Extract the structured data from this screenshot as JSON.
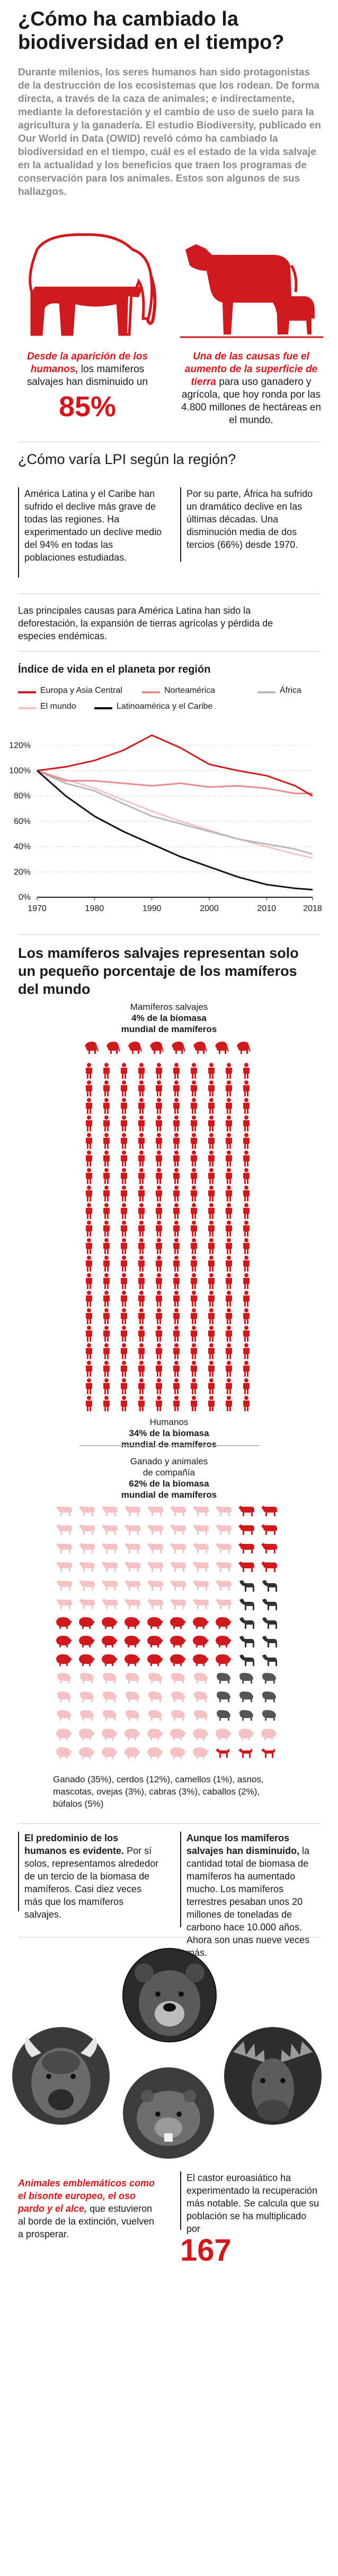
{
  "header": {
    "title": "¿Cómo ha cambiado la biodiversidad en el tiempo?",
    "intro": "Durante milenios, los seres humanos han sido protagonistas de la destrucción de los ecosistemas que los rodean. De forma directa, a través de la caza de animales; e indirectamente, mediante la deforestación y el cambio de uso de suelo para la agricultura y la ganadería. El estudio Biodiversity, publicado en Our World in Data (OWID) reveló cómo ha cambiado la biodiversidad en el tiempo, cuál es el estado de la vida salvaje en la actualidad y los beneficios que traen los programas de conservación para los animales. Estos son algunos de sus hallazgos."
  },
  "facts": {
    "left_highlight": "Desde la aparición de los humanos,",
    "left_rest": " los mamíferos salvajes han disminuido un",
    "left_value": "85%",
    "right_highlight": "Una de las causas fue el aumento de la superficie de tierra",
    "right_rest": " para uso ganadero y agrícola, que hoy ronda por las 4.800 millones de hectáreas en el mundo."
  },
  "lpi": {
    "heading": "¿Cómo varía LPI según la región?",
    "col1": "América Latina y el Caribe han sufrido el declive más grave de todas las regiones. Ha experimentado un declive medio del 94% en todas las poblaciones estudiadas.",
    "col2": "Por su parte, África ha sufrido un dramático declive en las últimas décadas. Una disminución media de dos tercios (66%) desde 1970.",
    "causes": "Las principales causas para América Latina han sido la deforestación, la expansión de tierras agrícolas y pérdida de especies endémicas."
  },
  "colors": {
    "red": "#d0191d",
    "pink": "#e98a8c",
    "lightpink": "#f4c2c3",
    "gray": "#b9b9b9",
    "black": "#111111",
    "darkgray": "#666666"
  },
  "chart_data": {
    "type": "line",
    "title": "Índice de vida en el planeta por región",
    "x": [
      1970,
      1975,
      1980,
      1985,
      1990,
      1995,
      2000,
      2005,
      2010,
      2015,
      2018
    ],
    "xticks": [
      "1970",
      "1980",
      "1990",
      "2000",
      "2010",
      "2018"
    ],
    "yticks": [
      "0%",
      "20%",
      "40%",
      "60%",
      "80%",
      "100%",
      "120%"
    ],
    "ylim": [
      0,
      130
    ],
    "legend_position": "top",
    "series": [
      {
        "name": "Europa y Asia Central",
        "color": "#d0191d",
        "values": [
          100,
          103,
          108,
          116,
          128,
          118,
          105,
          100,
          96,
          88,
          80
        ]
      },
      {
        "name": "Norteamérica",
        "color": "#e98a8c",
        "values": [
          100,
          92,
          92,
          90,
          88,
          90,
          87,
          88,
          86,
          82,
          82
        ]
      },
      {
        "name": "África",
        "color": "#b9b9b9",
        "values": [
          100,
          90,
          84,
          74,
          64,
          58,
          52,
          46,
          42,
          38,
          34
        ]
      },
      {
        "name": "El mundo",
        "color": "#f4c2c3",
        "values": [
          100,
          93,
          86,
          77,
          68,
          60,
          53,
          46,
          40,
          34,
          31
        ]
      },
      {
        "name": "Latinoamérica y el Caribe",
        "color": "#111111",
        "values": [
          100,
          80,
          64,
          52,
          42,
          32,
          24,
          16,
          10,
          7,
          6
        ]
      }
    ]
  },
  "mammals": {
    "heading": "Los mamíferos salvajes representan solo un pequeño porcentaje de los mamíferos del mundo",
    "wild_l1": "Mamíferos salvajes",
    "wild_l2": "4% de la biomasa",
    "wild_l3": "mundial de mamíferos",
    "human_l1": "Humanos",
    "human_l2": "34% de la biomasa",
    "human_l3": "mundial de mamíferos",
    "livestock_l1": "Ganado y animales",
    "livestock_l2": "de compañía",
    "livestock_l3": "62% de la biomasa",
    "livestock_l4": "mundial de mamíferos",
    "breakdown": "Ganado (35%), cerdos (12%), camellos (1%), asnos, mascotas, ovejas (3%), cabras (3%), caballos (2%), búfalos (5%)"
  },
  "conclusions": {
    "left_title": "El predominio de los humanos es evidente.",
    "left_rest": " Por sí solos, representamos alrededor de un tercio de la biomasa de mamíferos. Casi diez veces más que los mamíferos salvajes.",
    "right_title": "Aunque los mamíferos salvajes han disminuido,",
    "right_rest": " la cantidad total de biomasa de mamíferos ha aumentado mucho. Los mamíferos terrestres pesaban unos 20 millones de toneladas de carbono hace 10.000 años. Ahora son unas nueve veces más."
  },
  "endings": {
    "left_highlight": "Animales emblemáticos como el bisonte europeo, el oso pardo y el alce,",
    "left_rest": " que estuvieron al borde de la extinción, vuelven a prosperar.",
    "right_text": "El castor euroasiático ha experimentado la recuperación más notable. Se calcula que su población se ha multiplicado por",
    "right_value": "167"
  }
}
